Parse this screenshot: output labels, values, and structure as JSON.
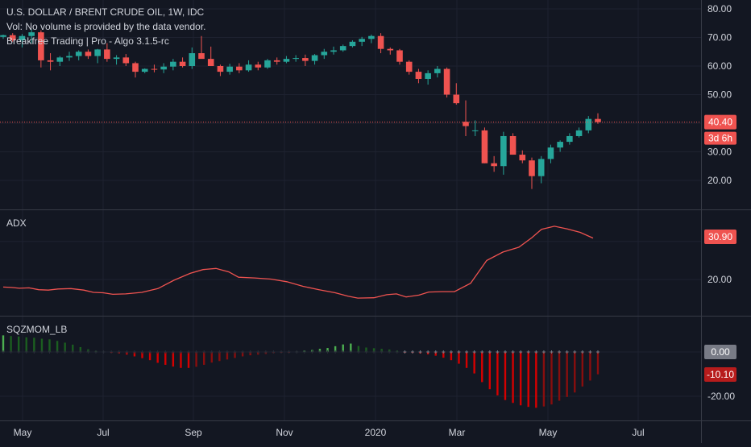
{
  "header": {
    "symbol_line": "U.S. DOLLAR / BRENT CRUDE OIL, 1W, IDC",
    "volume_note": "Vol: No volume is provided by the data vendor.",
    "study_name": "Breakfree Trading | Pro - Algo 3.1.5-rc"
  },
  "panes": {
    "adx_label": "ADX",
    "sqz_label": "SQZMOM_LB"
  },
  "badges": {
    "last_price": "40.40",
    "countdown": "3d 6h",
    "adx_value": "30.90",
    "sqz_zero": "0.00",
    "sqz_value": "-10.10"
  },
  "colors": {
    "background": "#131722",
    "up": "#26a69a",
    "down": "#ef5350",
    "adx_line": "#ef5350",
    "sqz_pos_strong": "#4caf50",
    "sqz_pos_weak": "#1b5e20",
    "sqz_neg_strong": "#d50000",
    "sqz_neg_weak": "#880e0e",
    "text": "#d1d4dc",
    "grid": "#1e2230"
  },
  "chart_data": [
    {
      "type": "candlestick",
      "x_ticks": [
        "May",
        "Jul",
        "Sep",
        "Nov",
        "2020",
        "Mar",
        "May",
        "Jul"
      ],
      "y_ticks": [
        "80.00",
        "70.00",
        "60.00",
        "50.00",
        "30.00",
        "20.00"
      ],
      "ylim": [
        14,
        82
      ],
      "last_price": 40.4,
      "candles": [
        [
          70.2,
          71.0,
          69.5,
          70.8
        ],
        [
          70.8,
          71.5,
          68.5,
          69.0
        ],
        [
          69.0,
          71.2,
          66.5,
          70.5
        ],
        [
          70.5,
          72.8,
          68.0,
          71.8
        ],
        [
          71.8,
          72.5,
          59.5,
          62.0
        ],
        [
          62.0,
          64.5,
          58.5,
          61.5
        ],
        [
          61.5,
          63.5,
          60.0,
          63.0
        ],
        [
          63.0,
          65.0,
          61.8,
          63.5
        ],
        [
          63.5,
          65.5,
          62.0,
          65.0
        ],
        [
          65.0,
          65.8,
          62.5,
          63.5
        ],
        [
          63.5,
          66.0,
          61.0,
          65.8
        ],
        [
          65.8,
          68.0,
          61.5,
          62.5
        ],
        [
          62.5,
          63.8,
          60.5,
          63.0
        ],
        [
          63.0,
          64.2,
          60.0,
          61.0
        ],
        [
          61.0,
          61.5,
          56.0,
          58.0
        ],
        [
          58.0,
          59.2,
          57.5,
          59.0
        ],
        [
          59.0,
          60.5,
          57.8,
          58.8
        ],
        [
          58.8,
          61.0,
          57.5,
          59.8
        ],
        [
          59.8,
          62.5,
          58.5,
          61.5
        ],
        [
          61.5,
          63.0,
          59.5,
          60.0
        ],
        [
          60.0,
          66.5,
          59.0,
          64.5
        ],
        [
          64.5,
          70.5,
          63.0,
          62.5
        ],
        [
          62.5,
          66.8,
          60.5,
          60.0
        ],
        [
          60.0,
          60.5,
          56.5,
          58.0
        ],
        [
          58.0,
          60.8,
          57.0,
          59.8
        ],
        [
          59.8,
          61.0,
          57.5,
          58.5
        ],
        [
          58.5,
          62.0,
          58.0,
          60.5
        ],
        [
          60.5,
          61.5,
          58.5,
          59.5
        ],
        [
          59.5,
          62.5,
          59.0,
          62.0
        ],
        [
          62.0,
          63.0,
          60.5,
          61.5
        ],
        [
          61.5,
          63.5,
          61.0,
          62.5
        ],
        [
          62.5,
          63.8,
          61.5,
          62.8
        ],
        [
          62.8,
          64.0,
          60.0,
          61.8
        ],
        [
          61.8,
          64.2,
          60.5,
          63.8
        ],
        [
          63.8,
          66.0,
          62.5,
          65.0
        ],
        [
          65.0,
          66.8,
          64.0,
          65.5
        ],
        [
          65.5,
          67.5,
          65.0,
          67.0
        ],
        [
          67.0,
          69.0,
          66.5,
          68.5
        ],
        [
          68.5,
          70.2,
          67.0,
          69.5
        ],
        [
          69.5,
          71.0,
          68.0,
          70.5
        ],
        [
          70.5,
          71.5,
          64.5,
          66.0
        ],
        [
          66.0,
          66.5,
          64.0,
          65.5
        ],
        [
          65.5,
          66.0,
          60.5,
          61.5
        ],
        [
          61.5,
          62.0,
          57.0,
          58.0
        ],
        [
          58.0,
          59.0,
          54.0,
          55.5
        ],
        [
          55.5,
          58.5,
          53.5,
          57.5
        ],
        [
          57.5,
          60.0,
          56.0,
          59.0
        ],
        [
          59.0,
          59.5,
          49.0,
          50.0
        ],
        [
          50.0,
          54.0,
          46.5,
          47.0
        ],
        [
          40.5,
          48.0,
          35.5,
          39.0
        ],
        [
          37.5,
          41.0,
          35.5,
          37.5
        ],
        [
          37.5,
          38.5,
          26.0,
          26.0
        ],
        [
          26.0,
          28.5,
          23.0,
          25.0
        ],
        [
          25.0,
          37.0,
          22.0,
          35.5
        ],
        [
          35.5,
          36.5,
          29.0,
          29.0
        ],
        [
          29.0,
          30.5,
          26.0,
          27.0
        ],
        [
          27.0,
          28.0,
          17.0,
          21.5
        ],
        [
          21.5,
          28.5,
          19.0,
          27.5
        ],
        [
          27.5,
          32.5,
          26.0,
          31.5
        ],
        [
          31.5,
          34.0,
          30.0,
          33.5
        ],
        [
          33.5,
          36.5,
          32.5,
          35.5
        ],
        [
          35.5,
          38.5,
          35.0,
          37.5
        ],
        [
          37.5,
          42.5,
          36.5,
          41.5
        ],
        [
          41.5,
          43.5,
          39.8,
          40.4
        ]
      ]
    },
    {
      "type": "line",
      "name": "ADX",
      "y_ticks": [
        "20.00"
      ],
      "ylim": [
        10,
        36
      ],
      "last_value": 30.9,
      "values": [
        [
          0,
          18.0
        ],
        [
          5,
          17.9
        ],
        [
          10,
          17.7
        ],
        [
          16,
          17.8
        ],
        [
          22,
          17.3
        ],
        [
          28,
          17.2
        ],
        [
          34,
          17.5
        ],
        [
          42,
          17.6
        ],
        [
          50,
          17.2
        ],
        [
          56,
          16.6
        ],
        [
          62,
          16.5
        ],
        [
          68,
          16.1
        ],
        [
          76,
          16.2
        ],
        [
          86,
          16.6
        ],
        [
          96,
          17.6
        ],
        [
          106,
          19.8
        ],
        [
          116,
          21.6
        ],
        [
          124,
          22.6
        ],
        [
          132,
          22.9
        ],
        [
          140,
          22.0
        ],
        [
          146,
          20.6
        ],
        [
          156,
          20.4
        ],
        [
          166,
          20.1
        ],
        [
          176,
          19.4
        ],
        [
          186,
          18.2
        ],
        [
          196,
          17.3
        ],
        [
          206,
          16.5
        ],
        [
          214,
          15.6
        ],
        [
          220,
          15.1
        ],
        [
          230,
          15.2
        ],
        [
          238,
          16.0
        ],
        [
          244,
          16.2
        ],
        [
          250,
          15.4
        ],
        [
          258,
          15.9
        ],
        [
          264,
          16.7
        ],
        [
          272,
          16.8
        ],
        [
          280,
          16.8
        ],
        [
          290,
          19.0
        ],
        [
          300,
          25.0
        ],
        [
          310,
          27.2
        ],
        [
          320,
          28.5
        ],
        [
          328,
          31.0
        ],
        [
          334,
          33.2
        ],
        [
          342,
          34.0
        ],
        [
          350,
          33.3
        ],
        [
          358,
          32.4
        ],
        [
          366,
          30.9
        ]
      ]
    },
    {
      "type": "bar",
      "name": "SQZMOM_LB",
      "y_ticks": [
        "0.00",
        "-20.00"
      ],
      "ylim": [
        -27,
        10
      ],
      "last_value": -10.1,
      "values": [
        7.5,
        7.2,
        7.0,
        6.6,
        6.4,
        6.0,
        5.7,
        5.0,
        4.2,
        3.3,
        2.2,
        1.2,
        0.5,
        0.2,
        -0.4,
        -0.7,
        -1.2,
        -2.0,
        -2.8,
        -3.7,
        -4.9,
        -5.8,
        -6.6,
        -7.2,
        -7.2,
        -6.7,
        -5.8,
        -4.8,
        -4.1,
        -3.4,
        -2.7,
        -2.0,
        -1.5,
        -1.2,
        -0.9,
        -0.5,
        -0.2,
        -0.1,
        0.2,
        0.6,
        0.9,
        1.4,
        1.8,
        2.6,
        3.4,
        3.8,
        2.7,
        2.0,
        1.7,
        1.4,
        1.1,
        0.6,
        -0.2,
        -0.4,
        -0.7,
        -1.1,
        -1.7,
        -2.6,
        -3.7,
        -5.3,
        -7.2,
        -9.7,
        -13.6,
        -16.8,
        -19.6,
        -21.7,
        -23.0,
        -24.1,
        -24.8,
        -25.2,
        -24.6,
        -23.7,
        -22.0,
        -20.3,
        -18.3,
        -15.6,
        -12.9,
        -10.1
      ]
    }
  ]
}
